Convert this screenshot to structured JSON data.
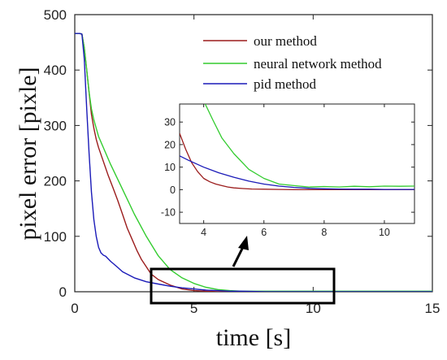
{
  "chart_data": [
    {
      "type": "line",
      "xlabel": "time [s]",
      "ylabel": "pixel error [pixle]",
      "xlim": [
        0,
        15
      ],
      "ylim": [
        0,
        500
      ],
      "xticks": [
        "0",
        "5",
        "10",
        "15"
      ],
      "yticks": [
        "0",
        "100",
        "200",
        "300",
        "400",
        "500"
      ],
      "grid": false,
      "legend_position": "top-right",
      "series": [
        {
          "name": "our method",
          "color": "#9b1c1c",
          "x": [
            0,
            0.2,
            0.3,
            0.4,
            0.5,
            0.6,
            0.7,
            0.8,
            0.9,
            1.0,
            1.2,
            1.4,
            1.6,
            1.8,
            2.0,
            2.2,
            2.4,
            2.6,
            2.8,
            3.0,
            3.2,
            3.5,
            4.0,
            4.5,
            5.0,
            5.5,
            6.0,
            7.0,
            8.0,
            10.0,
            12.0,
            15.0
          ],
          "y": [
            466,
            466,
            465,
            440,
            400,
            360,
            320,
            295,
            275,
            260,
            235,
            210,
            188,
            165,
            140,
            115,
            95,
            75,
            58,
            45,
            32,
            22,
            12,
            5,
            2,
            1,
            0,
            0,
            0,
            0,
            0,
            0
          ]
        },
        {
          "name": "neural network method",
          "color": "#33cc2f",
          "x": [
            0,
            0.2,
            0.3,
            0.4,
            0.5,
            0.6,
            0.7,
            0.8,
            0.9,
            1.0,
            1.5,
            2.0,
            2.5,
            3.0,
            3.5,
            4.0,
            4.5,
            5.0,
            5.5,
            6.0,
            6.5,
            7.0,
            8.0,
            9.0,
            10.0,
            11.0,
            12.0,
            13.0,
            14.0,
            15.0
          ],
          "y": [
            466,
            466,
            465,
            440,
            400,
            360,
            330,
            310,
            295,
            280,
            230,
            185,
            140,
            100,
            65,
            40,
            25,
            15,
            8,
            4,
            2,
            1,
            1,
            1,
            1,
            1,
            1,
            1,
            1,
            1
          ]
        },
        {
          "name": "pid method",
          "color": "#1a1ab8",
          "x": [
            0,
            0.2,
            0.3,
            0.4,
            0.5,
            0.6,
            0.7,
            0.8,
            0.9,
            1.0,
            1.1,
            1.2,
            1.3,
            1.5,
            1.8,
            2.0,
            2.5,
            3.0,
            3.5,
            4.0,
            4.5,
            5.0,
            5.5,
            6.0,
            6.5,
            7.0,
            8.0,
            9.0,
            10.0,
            12.0,
            15.0
          ],
          "y": [
            466,
            466,
            465,
            420,
            330,
            250,
            180,
            130,
            100,
            80,
            70,
            66,
            64,
            55,
            44,
            36,
            25,
            18,
            14,
            10,
            7,
            5,
            3,
            2,
            1,
            1,
            0,
            0,
            0,
            0,
            0
          ]
        }
      ]
    },
    {
      "type": "line",
      "xlabel": "",
      "ylabel": "",
      "xlim": [
        3.2,
        11
      ],
      "ylim": [
        -15,
        38
      ],
      "xticks": [
        "4",
        "6",
        "8",
        "10"
      ],
      "yticks": [
        "-10",
        "0",
        "10",
        "20",
        "30"
      ],
      "grid": false,
      "series": [
        {
          "name": "our method",
          "color": "#9b1c1c",
          "x": [
            3.2,
            3.4,
            3.6,
            3.8,
            4.0,
            4.2,
            4.4,
            4.6,
            4.8,
            5.0,
            5.3,
            5.6,
            6.0,
            6.5,
            7.0,
            8.0,
            9.0,
            10.0,
            11.0
          ],
          "y": [
            25,
            18,
            12,
            8,
            5,
            3.5,
            2.5,
            1.8,
            1.2,
            0.8,
            0.5,
            0.3,
            0.2,
            0.1,
            0,
            0,
            0,
            0,
            0
          ]
        },
        {
          "name": "neural network method",
          "color": "#33cc2f",
          "x": [
            4.05,
            4.3,
            4.6,
            5.0,
            5.5,
            6.0,
            6.5,
            7.0,
            7.5,
            8.0,
            8.5,
            9.0,
            9.5,
            10.0,
            10.5,
            11.0
          ],
          "y": [
            38,
            31,
            23,
            16,
            9,
            5,
            2.5,
            1.8,
            1.2,
            1.4,
            1.2,
            1.5,
            1.3,
            1.6,
            1.5,
            1.6
          ]
        },
        {
          "name": "pid method",
          "color": "#1a1ab8",
          "x": [
            3.2,
            3.5,
            4.0,
            4.5,
            5.0,
            5.5,
            6.0,
            6.5,
            7.0,
            7.5,
            8.0,
            8.5,
            9.0,
            9.5,
            10.0,
            10.5,
            11.0
          ],
          "y": [
            15,
            13,
            10,
            7.5,
            5.5,
            3.8,
            2.5,
            1.6,
            1.0,
            0.6,
            0.4,
            0.3,
            0.2,
            0.2,
            0.1,
            0.1,
            0.1
          ]
        }
      ]
    }
  ]
}
